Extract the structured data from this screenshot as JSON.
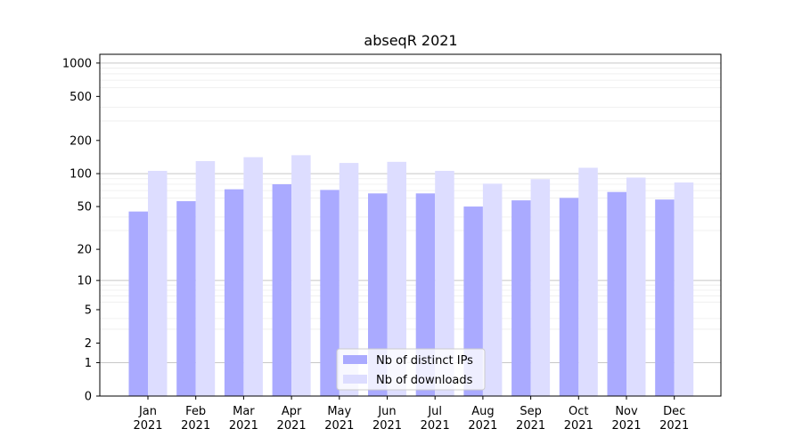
{
  "chart_data": {
    "type": "bar",
    "title": "abseqR 2021",
    "xlabel": "",
    "ylabel": "",
    "yscale": "log1p",
    "ylim": [
      0,
      1200
    ],
    "y_ticks": [
      0,
      1,
      2,
      5,
      10,
      20,
      50,
      100,
      200,
      500,
      1000
    ],
    "categories": [
      "Jan\n2021",
      "Feb\n2021",
      "Mar\n2021",
      "Apr\n2021",
      "May\n2021",
      "Jun\n2021",
      "Jul\n2021",
      "Aug\n2021",
      "Sep\n2021",
      "Oct\n2021",
      "Nov\n2021",
      "Dec\n2021"
    ],
    "series": [
      {
        "name": "Nb of distinct IPs",
        "color": "#aaaaff",
        "values": [
          45,
          56,
          72,
          80,
          71,
          66,
          66,
          50,
          57,
          60,
          68,
          58
        ]
      },
      {
        "name": "Nb of downloads",
        "color": "#ddddff",
        "values": [
          106,
          130,
          141,
          147,
          125,
          128,
          106,
          81,
          89,
          113,
          92,
          83
        ]
      }
    ],
    "grid": true,
    "legend_position": "lower-center"
  }
}
